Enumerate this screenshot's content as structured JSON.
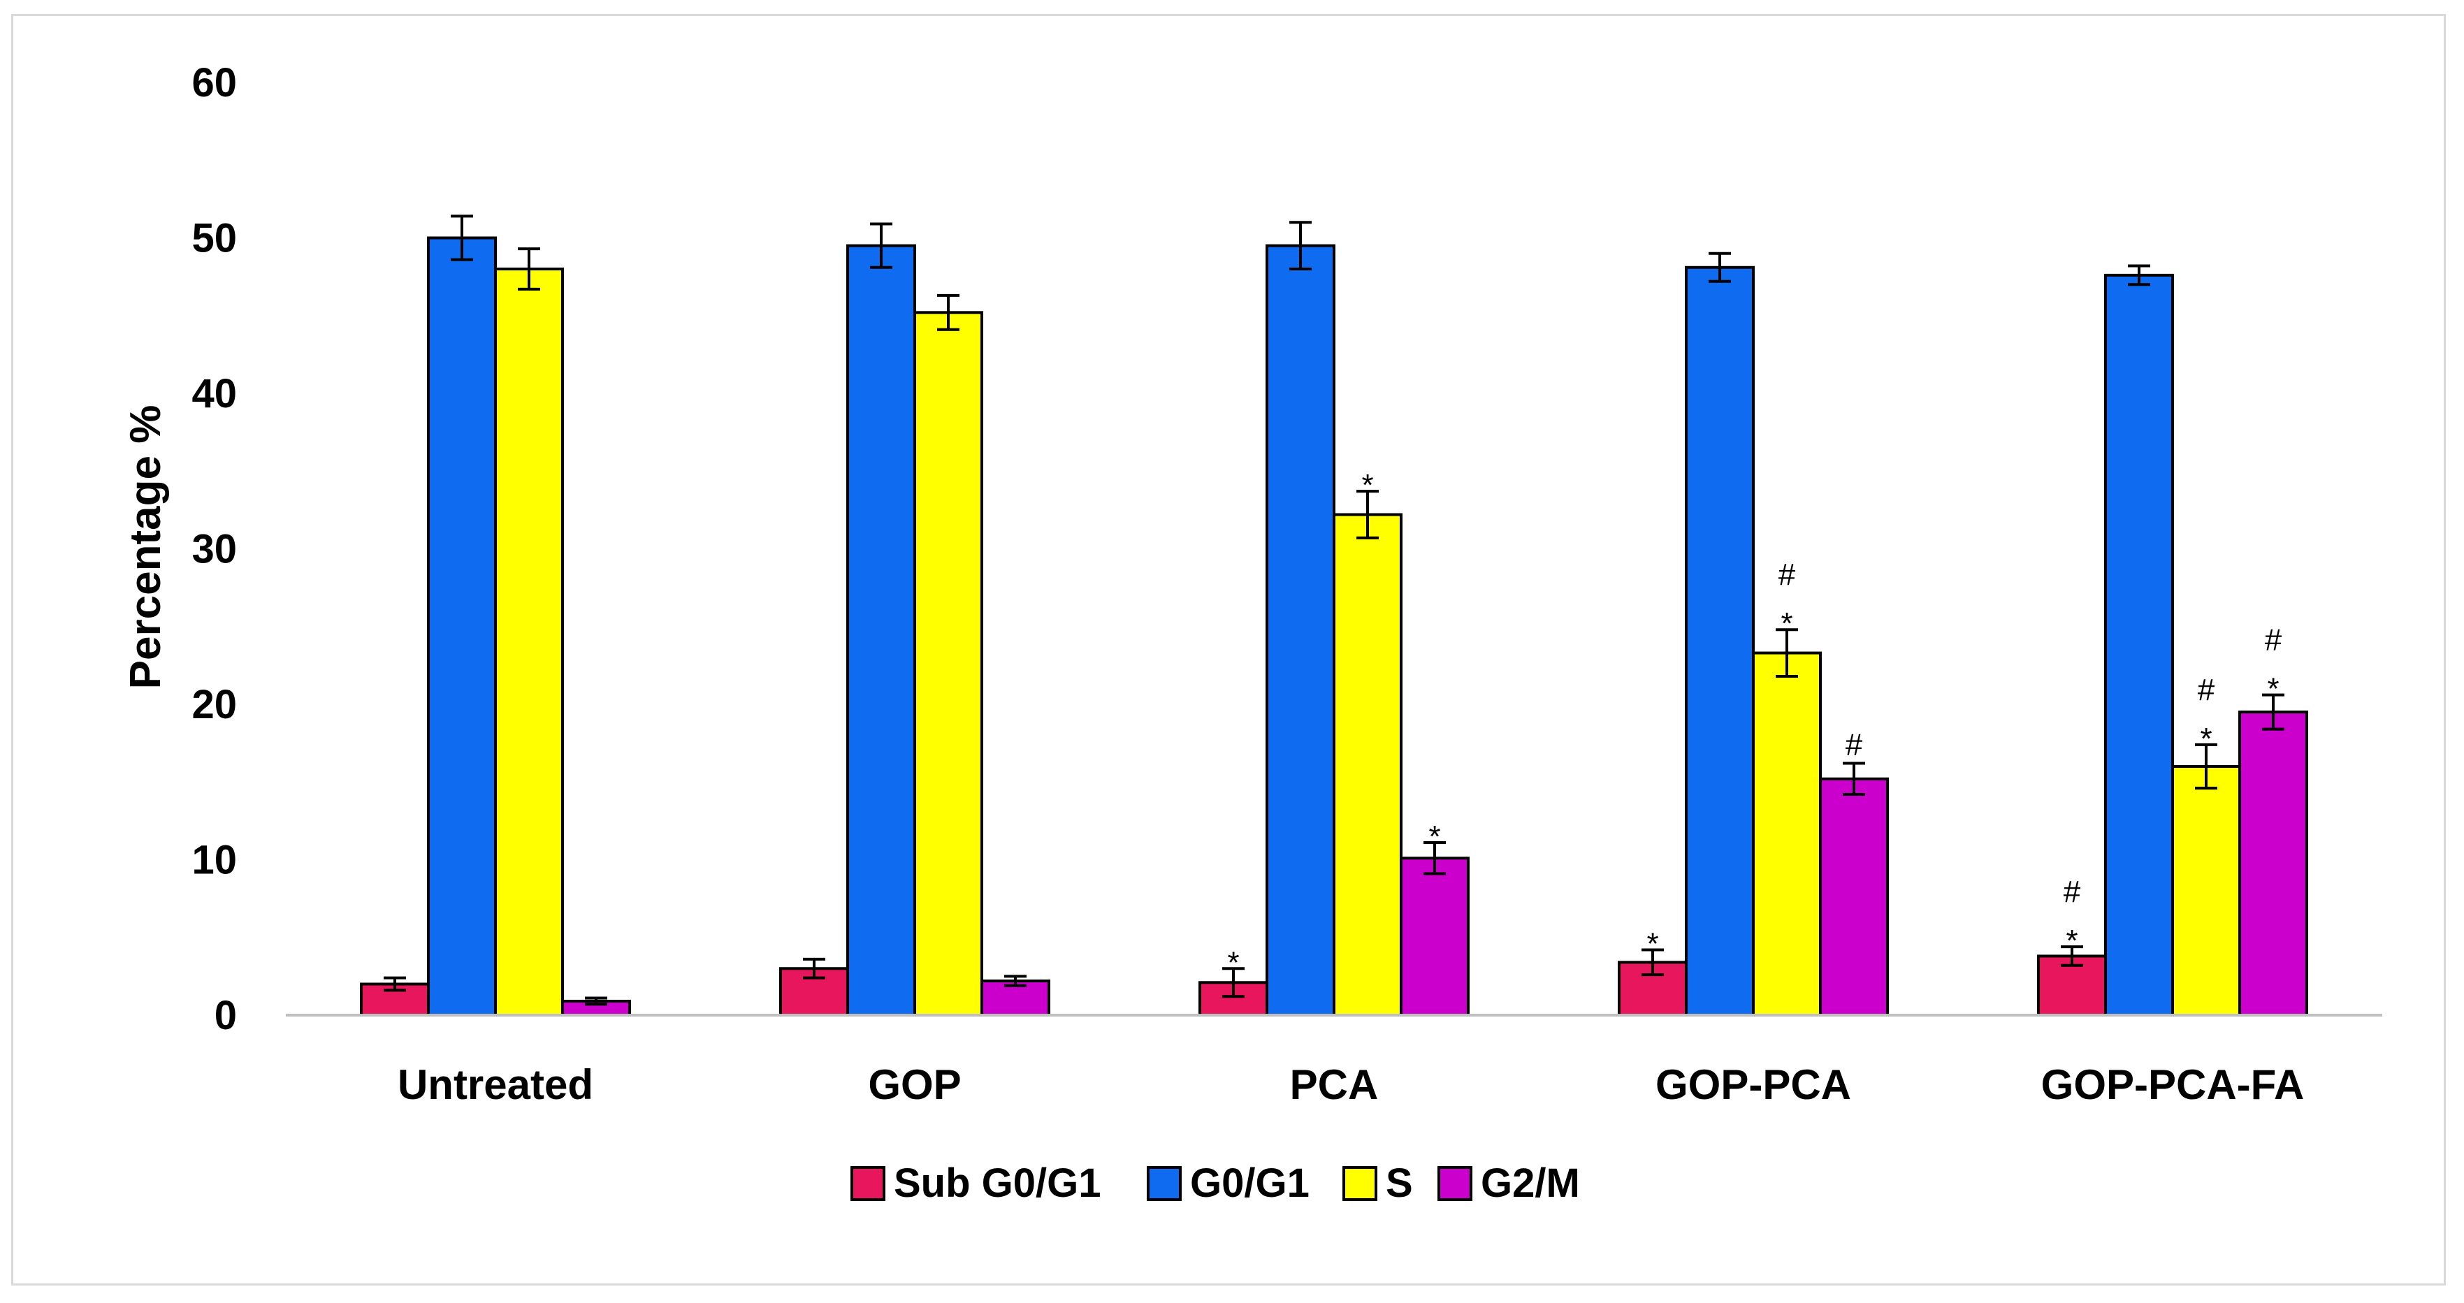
{
  "chart_data": {
    "type": "bar",
    "title": "",
    "xlabel": "",
    "ylabel": "Percentage %",
    "ylim": [
      0,
      60
    ],
    "yticks": [
      0,
      10,
      20,
      30,
      40,
      50,
      60
    ],
    "grid": false,
    "legend_position": "bottom-center",
    "categories": [
      "Untreated",
      "GOP",
      "PCA",
      "GOP-PCA",
      "GOP-PCA-FA"
    ],
    "series": [
      {
        "name": "Sub G0/G1",
        "color": "#e8175d",
        "values": [
          2.0,
          3.0,
          2.1,
          3.4,
          3.8
        ],
        "errors": [
          0.4,
          0.6,
          0.9,
          0.8,
          0.6
        ],
        "annotations": [
          "",
          "",
          "*",
          "*",
          "#\n*"
        ]
      },
      {
        "name": "G0/G1",
        "color": "#0f6cf0",
        "values": [
          50.0,
          49.5,
          49.5,
          48.1,
          47.6
        ],
        "errors": [
          1.4,
          1.4,
          1.5,
          0.9,
          0.6
        ],
        "annotations": [
          "",
          "",
          "",
          "",
          ""
        ]
      },
      {
        "name": "S",
        "color": "#ffff00",
        "values": [
          48.0,
          45.2,
          32.2,
          23.3,
          16.0
        ],
        "errors": [
          1.3,
          1.1,
          1.5,
          1.5,
          1.4
        ],
        "annotations": [
          "",
          "",
          "*",
          "#\n*",
          "#\n*"
        ]
      },
      {
        "name": "G2/M",
        "color": "#cc00cc",
        "values": [
          0.9,
          2.2,
          10.1,
          15.2,
          19.5
        ],
        "errors": [
          0.2,
          0.3,
          1.0,
          1.0,
          1.1
        ],
        "annotations": [
          "",
          "",
          "*",
          "#",
          "#\n*"
        ]
      }
    ]
  }
}
